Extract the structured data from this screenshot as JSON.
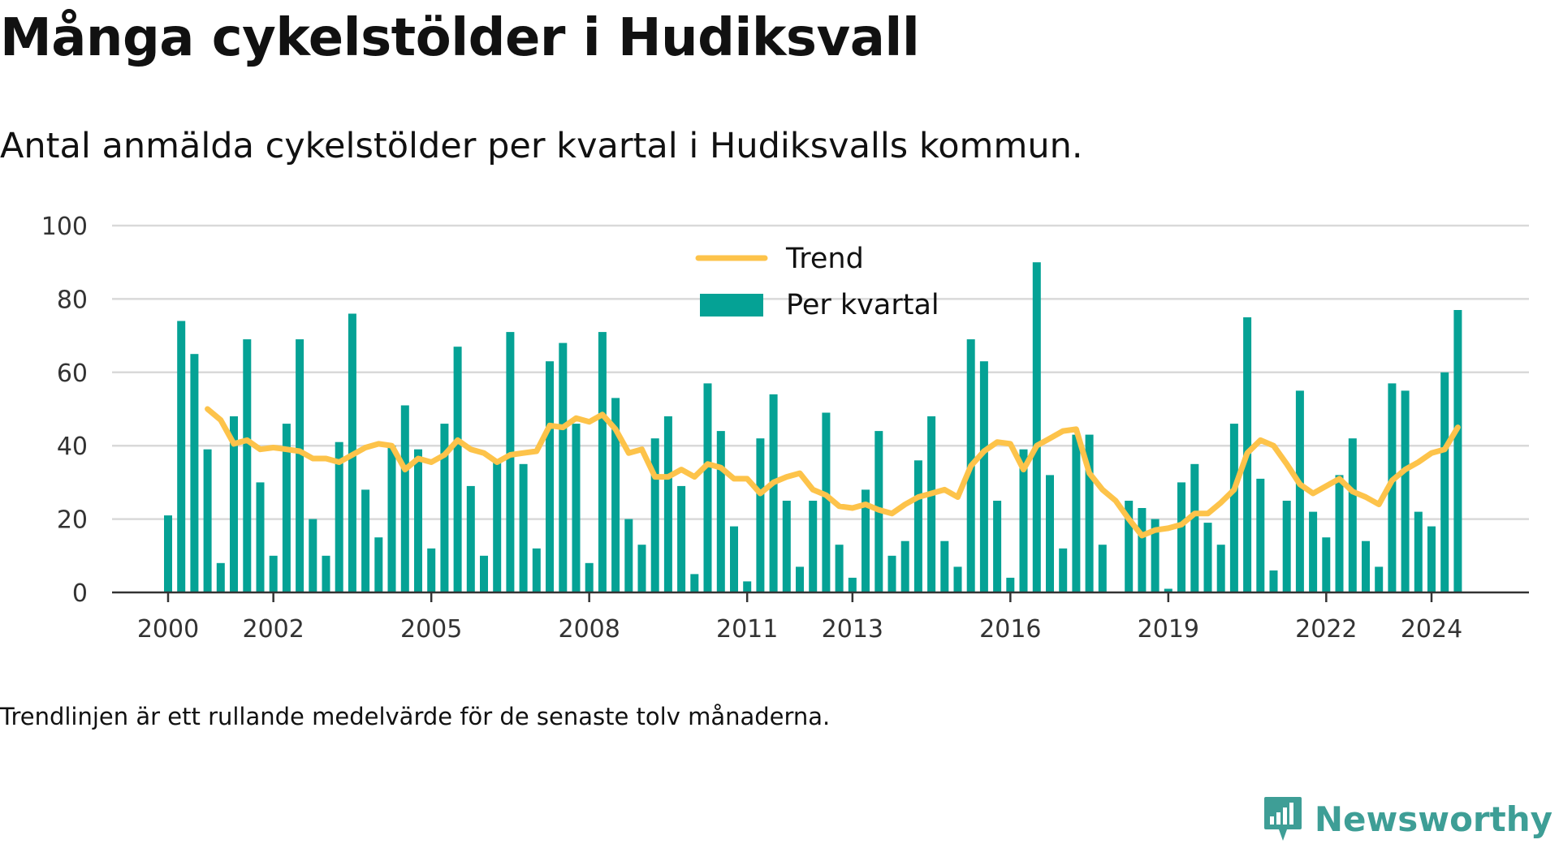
{
  "title": "Många cykelstölder i Hudiksvall",
  "subtitle": "Antal anmälda cykelstölder per kvartal i Hudiksvalls kommun.",
  "footnote": "Trendlinjen är ett rullande medelvärde för de senaste tolv månaderna.",
  "brand": "Newsworthy",
  "colors": {
    "bar": "#05a295",
    "trend": "#fdc34a",
    "grid": "#d9d9d9",
    "axis": "#333333",
    "brand": "#3e9e96"
  },
  "chart_data": {
    "type": "bar",
    "grid": true,
    "legend_position": "top-center",
    "ylim": [
      0,
      100
    ],
    "yticks": [
      0,
      20,
      40,
      60,
      80,
      100
    ],
    "xlim": [
      2000,
      2025.75
    ],
    "xticks": [
      2000,
      2002,
      2005,
      2008,
      2011,
      2013,
      2016,
      2019,
      2022,
      2024
    ],
    "xticklabels": [
      "2000",
      "2002",
      "2005",
      "2008",
      "2011",
      "2013",
      "2016",
      "2019",
      "2022",
      "2024"
    ],
    "series": [
      {
        "name": "Per kvartal",
        "type": "bar",
        "x": [
          "2000 Q1",
          "2000 Q2",
          "2000 Q3",
          "2000 Q4",
          "2001 Q1",
          "2001 Q2",
          "2001 Q3",
          "2001 Q4",
          "2002 Q1",
          "2002 Q2",
          "2002 Q3",
          "2002 Q4",
          "2003 Q1",
          "2003 Q2",
          "2003 Q3",
          "2003 Q4",
          "2004 Q1",
          "2004 Q2",
          "2004 Q3",
          "2004 Q4",
          "2005 Q1",
          "2005 Q2",
          "2005 Q3",
          "2005 Q4",
          "2006 Q1",
          "2006 Q2",
          "2006 Q3",
          "2006 Q4",
          "2007 Q1",
          "2007 Q2",
          "2007 Q3",
          "2007 Q4",
          "2008 Q1",
          "2008 Q2",
          "2008 Q3",
          "2008 Q4",
          "2009 Q1",
          "2009 Q2",
          "2009 Q3",
          "2009 Q4",
          "2010 Q1",
          "2010 Q2",
          "2010 Q3",
          "2010 Q4",
          "2011 Q1",
          "2011 Q2",
          "2011 Q3",
          "2011 Q4",
          "2012 Q1",
          "2012 Q2",
          "2012 Q3",
          "2012 Q4",
          "2013 Q1",
          "2013 Q2",
          "2013 Q3",
          "2013 Q4",
          "2014 Q1",
          "2014 Q2",
          "2014 Q3",
          "2014 Q4",
          "2015 Q1",
          "2015 Q2",
          "2015 Q3",
          "2015 Q4",
          "2016 Q1",
          "2016 Q2",
          "2016 Q3",
          "2016 Q4",
          "2017 Q1",
          "2017 Q2",
          "2017 Q3",
          "2017 Q4",
          "2018 Q1",
          "2018 Q2",
          "2018 Q3",
          "2018 Q4",
          "2019 Q1",
          "2019 Q2",
          "2019 Q3",
          "2019 Q4",
          "2020 Q1",
          "2020 Q2",
          "2020 Q3",
          "2020 Q4",
          "2021 Q1",
          "2021 Q2",
          "2021 Q3",
          "2021 Q4",
          "2022 Q1",
          "2022 Q2",
          "2022 Q3",
          "2022 Q4",
          "2023 Q1",
          "2023 Q2",
          "2023 Q3",
          "2023 Q4",
          "2024 Q1",
          "2024 Q2",
          "2024 Q3",
          "2024 Q4"
        ],
        "values": [
          21,
          74,
          65,
          39,
          8,
          48,
          69,
          30,
          10,
          46,
          69,
          20,
          10,
          41,
          76,
          28,
          15,
          40,
          51,
          39,
          12,
          46,
          67,
          29,
          10,
          36,
          71,
          35,
          12,
          63,
          68,
          46,
          8,
          71,
          53,
          20,
          13,
          42,
          48,
          29,
          5,
          57,
          44,
          18,
          3,
          42,
          54,
          25,
          7,
          25,
          49,
          13,
          4,
          28,
          44,
          10,
          14,
          36,
          48,
          14,
          7,
          69,
          63,
          25,
          4,
          39,
          90,
          32,
          12,
          43,
          43,
          13,
          0,
          25,
          23,
          20,
          1,
          30,
          35,
          19,
          13,
          46,
          75,
          31,
          6,
          25,
          55,
          22,
          15,
          32,
          42,
          14,
          7,
          57,
          55,
          22,
          18,
          60,
          77,
          0
        ]
      },
      {
        "name": "Trend",
        "type": "line",
        "x": [
          "2000 Q4",
          "2001 Q1",
          "2001 Q2",
          "2001 Q3",
          "2001 Q4",
          "2002 Q1",
          "2002 Q2",
          "2002 Q3",
          "2002 Q4",
          "2003 Q1",
          "2003 Q2",
          "2003 Q3",
          "2003 Q4",
          "2004 Q1",
          "2004 Q2",
          "2004 Q3",
          "2004 Q4",
          "2005 Q1",
          "2005 Q2",
          "2005 Q3",
          "2005 Q4",
          "2006 Q1",
          "2006 Q2",
          "2006 Q3",
          "2006 Q4",
          "2007 Q1",
          "2007 Q2",
          "2007 Q3",
          "2007 Q4",
          "2008 Q1",
          "2008 Q2",
          "2008 Q3",
          "2008 Q4",
          "2009 Q1",
          "2009 Q2",
          "2009 Q3",
          "2009 Q4",
          "2010 Q1",
          "2010 Q2",
          "2010 Q3",
          "2010 Q4",
          "2011 Q1",
          "2011 Q2",
          "2011 Q3",
          "2011 Q4",
          "2012 Q1",
          "2012 Q2",
          "2012 Q3",
          "2012 Q4",
          "2013 Q1",
          "2013 Q2",
          "2013 Q3",
          "2013 Q4",
          "2014 Q1",
          "2014 Q2",
          "2014 Q3",
          "2014 Q4",
          "2015 Q1",
          "2015 Q2",
          "2015 Q3",
          "2015 Q4",
          "2016 Q1",
          "2016 Q2",
          "2016 Q3",
          "2016 Q4",
          "2017 Q1",
          "2017 Q2",
          "2017 Q3",
          "2017 Q4",
          "2018 Q1",
          "2018 Q2",
          "2018 Q3",
          "2018 Q4",
          "2019 Q1",
          "2019 Q2",
          "2019 Q3",
          "2019 Q4",
          "2020 Q1",
          "2020 Q2",
          "2020 Q3",
          "2020 Q4",
          "2021 Q1",
          "2021 Q2",
          "2021 Q3",
          "2021 Q4",
          "2022 Q1",
          "2022 Q2",
          "2022 Q3",
          "2022 Q4",
          "2023 Q1",
          "2023 Q2",
          "2023 Q3",
          "2023 Q4",
          "2024 Q1",
          "2024 Q2",
          "2024 Q3"
        ],
        "values": [
          50,
          47,
          40.5,
          41.5,
          39,
          39.5,
          39,
          38.5,
          36.5,
          36.5,
          35.5,
          37.5,
          39.5,
          40.5,
          40,
          33.5,
          36.5,
          35.5,
          37.5,
          41.5,
          39,
          38,
          35.5,
          37.5,
          38,
          38.5,
          45.5,
          45,
          47.5,
          46.5,
          48.5,
          44.5,
          38,
          39,
          31.5,
          31.5,
          33.5,
          31.5,
          35,
          34,
          31,
          31,
          27,
          30,
          31.5,
          32.5,
          28,
          26.5,
          23.5,
          23,
          24,
          22.5,
          21.5,
          24,
          26,
          27,
          28,
          26,
          34.5,
          38.5,
          41,
          40.5,
          33.5,
          40,
          42,
          44,
          44.5,
          32.5,
          28,
          25,
          20,
          15.5,
          17,
          17.5,
          18.5,
          21.5,
          21.5,
          24.5,
          28,
          38,
          41.5,
          40,
          35,
          29.5,
          27,
          29,
          31,
          27.5,
          26,
          24,
          30.5,
          33.5,
          35.5,
          38,
          39,
          45
        ]
      }
    ]
  }
}
